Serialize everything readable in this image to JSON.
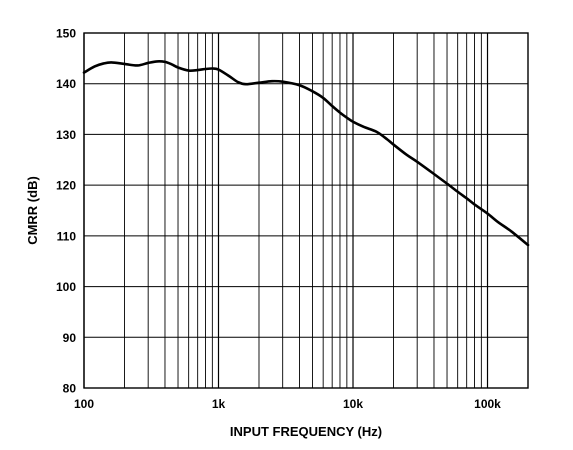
{
  "chart_data": {
    "type": "line",
    "title": "",
    "xlabel": "INPUT FREQUENCY (Hz)",
    "ylabel": "CMRR (dB)",
    "x_scale": "log",
    "xlim": [
      100,
      200000
    ],
    "ylim": [
      80,
      150
    ],
    "grid": true,
    "x_tick_labels": [
      {
        "value": 100,
        "label": "100"
      },
      {
        "value": 1000,
        "label": "1k"
      },
      {
        "value": 10000,
        "label": "10k"
      },
      {
        "value": 100000,
        "label": "100k"
      }
    ],
    "y_tick_labels": [
      {
        "value": 80,
        "label": "80"
      },
      {
        "value": 90,
        "label": "90"
      },
      {
        "value": 100,
        "label": "100"
      },
      {
        "value": 110,
        "label": "110"
      },
      {
        "value": 120,
        "label": "120"
      },
      {
        "value": 130,
        "label": "130"
      },
      {
        "value": 140,
        "label": "140"
      },
      {
        "value": 150,
        "label": "150"
      }
    ],
    "series": [
      {
        "color": "#000000",
        "x": [
          100,
          120,
          140,
          160,
          200,
          250,
          300,
          350,
          400,
          450,
          500,
          600,
          700,
          800,
          900,
          1000,
          1200,
          1400,
          1600,
          2000,
          2500,
          3000,
          4000,
          5000,
          6000,
          7000,
          8000,
          9000,
          10000,
          12000,
          15000,
          18000,
          20000,
          25000,
          30000,
          40000,
          50000,
          60000,
          70000,
          80000,
          100000,
          120000,
          150000,
          200000
        ],
        "y": [
          142.2,
          143.4,
          144.0,
          144.2,
          143.9,
          143.6,
          144.1,
          144.4,
          144.3,
          143.8,
          143.2,
          142.6,
          142.7,
          142.9,
          143.0,
          142.8,
          141.5,
          140.3,
          139.9,
          140.2,
          140.5,
          140.4,
          139.7,
          138.5,
          137.2,
          135.6,
          134.3,
          133.3,
          132.5,
          131.5,
          130.5,
          129.0,
          128.0,
          126.0,
          124.6,
          122.2,
          120.3,
          118.7,
          117.4,
          116.2,
          114.4,
          112.7,
          110.9,
          108.2
        ]
      }
    ]
  }
}
